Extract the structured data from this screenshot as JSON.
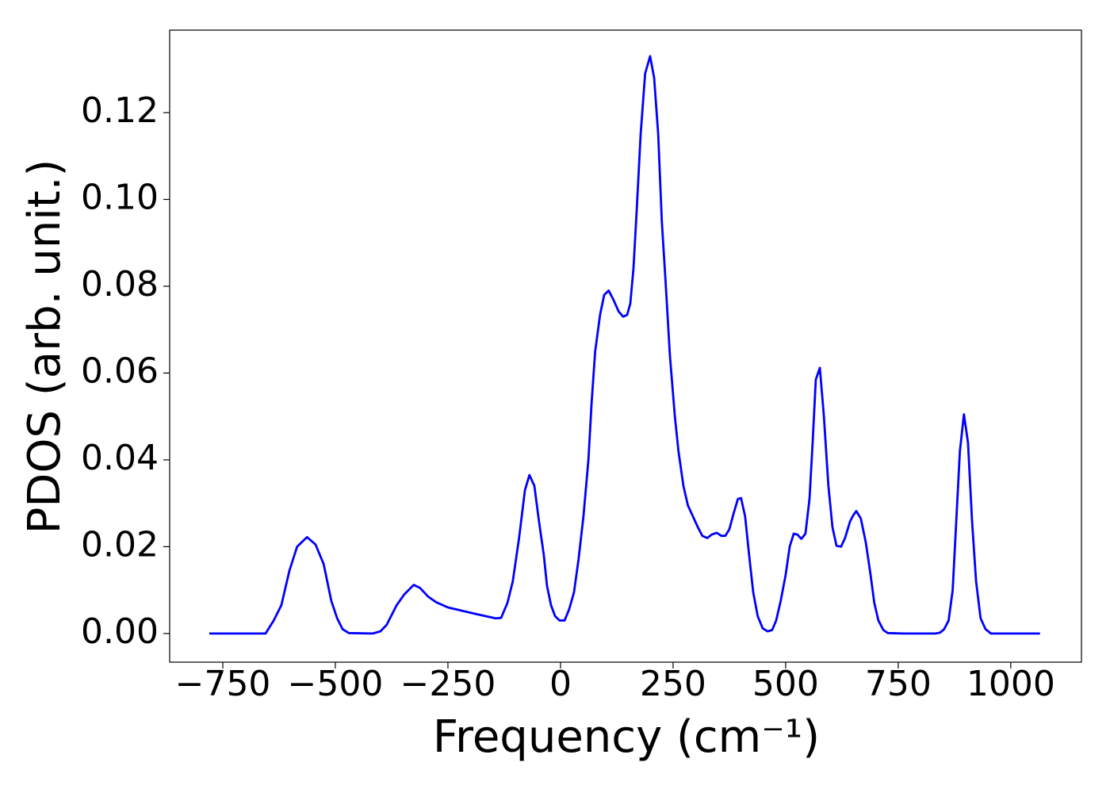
{
  "chart_data": {
    "type": "line",
    "x_label": "Frequency (cm⁻¹)",
    "y_label": "PDOS (arb. unit.)",
    "color": "#0000ff",
    "x": [
      -780,
      -700,
      -655,
      -637,
      -620,
      -602,
      -585,
      -563,
      -544,
      -526,
      -509,
      -496,
      -484,
      -470,
      -417,
      -400,
      -386,
      -364,
      -347,
      -326,
      -312,
      -294,
      -276,
      -250,
      -188,
      -144,
      -132,
      -118,
      -106,
      -92,
      -79,
      -69,
      -58,
      -48,
      -37,
      -30,
      -21,
      -12,
      -2,
      9,
      19,
      30,
      40,
      51,
      62,
      69,
      77,
      88,
      97,
      107,
      118,
      129,
      139,
      148,
      155,
      162,
      169,
      178,
      188,
      199,
      208,
      217,
      225,
      234,
      243,
      254,
      262,
      273,
      283,
      294,
      305,
      315,
      326,
      336,
      347,
      357,
      366,
      375,
      384,
      394,
      401,
      410,
      419,
      428,
      438,
      449,
      460,
      470,
      479,
      489,
      500,
      509,
      518,
      526,
      535,
      544,
      553,
      560,
      567,
      576,
      585,
      595,
      604,
      613,
      623,
      632,
      643,
      650,
      657,
      667,
      678,
      688,
      697,
      706,
      717,
      727,
      762,
      833,
      843,
      852,
      862,
      871,
      878,
      887,
      896,
      905,
      914,
      923,
      933,
      944,
      956,
      1065
    ],
    "values": [
      0,
      0,
      0,
      0.003,
      0.0065,
      0.0145,
      0.02,
      0.0222,
      0.0205,
      0.016,
      0.0075,
      0.0035,
      0.001,
      0.0001,
      0,
      0.0005,
      0.002,
      0.0065,
      0.009,
      0.0112,
      0.0105,
      0.0085,
      0.0072,
      0.006,
      0.0045,
      0.0035,
      0.0036,
      0.007,
      0.012,
      0.022,
      0.033,
      0.0365,
      0.034,
      0.026,
      0.018,
      0.011,
      0.0065,
      0.004,
      0.003,
      0.003,
      0.0055,
      0.0095,
      0.017,
      0.027,
      0.04,
      0.053,
      0.065,
      0.0735,
      0.078,
      0.079,
      0.0768,
      0.0742,
      0.073,
      0.0734,
      0.076,
      0.084,
      0.097,
      0.115,
      0.129,
      0.133,
      0.128,
      0.115,
      0.095,
      0.08,
      0.064,
      0.05,
      0.042,
      0.034,
      0.0295,
      0.027,
      0.0245,
      0.0225,
      0.022,
      0.0228,
      0.0232,
      0.0225,
      0.0225,
      0.024,
      0.0275,
      0.031,
      0.0312,
      0.027,
      0.018,
      0.0095,
      0.004,
      0.0012,
      0.0005,
      0.0008,
      0.003,
      0.0075,
      0.0135,
      0.02,
      0.023,
      0.0228,
      0.0218,
      0.023,
      0.031,
      0.044,
      0.0585,
      0.0612,
      0.05,
      0.034,
      0.0245,
      0.0202,
      0.02,
      0.022,
      0.0258,
      0.0272,
      0.0282,
      0.0265,
      0.021,
      0.014,
      0.007,
      0.003,
      0.0008,
      0.0001,
      0,
      0,
      0.0002,
      0.001,
      0.003,
      0.01,
      0.024,
      0.042,
      0.0505,
      0.044,
      0.026,
      0.012,
      0.0035,
      0.001,
      0,
      0
    ],
    "xlim": [
      -868,
      1157
    ],
    "ylim": [
      -0.0066,
      0.139
    ],
    "xticks": [
      {
        "value": -750,
        "label": "−750"
      },
      {
        "value": -500,
        "label": "−500"
      },
      {
        "value": -250,
        "label": "−250"
      },
      0,
      250,
      500,
      750,
      1000
    ],
    "yticks": [
      {
        "value": 0,
        "label": "0.00"
      },
      0.02,
      0.04,
      0.06,
      0.08,
      {
        "value": 0.1,
        "label": "0.10"
      },
      0.12
    ]
  }
}
